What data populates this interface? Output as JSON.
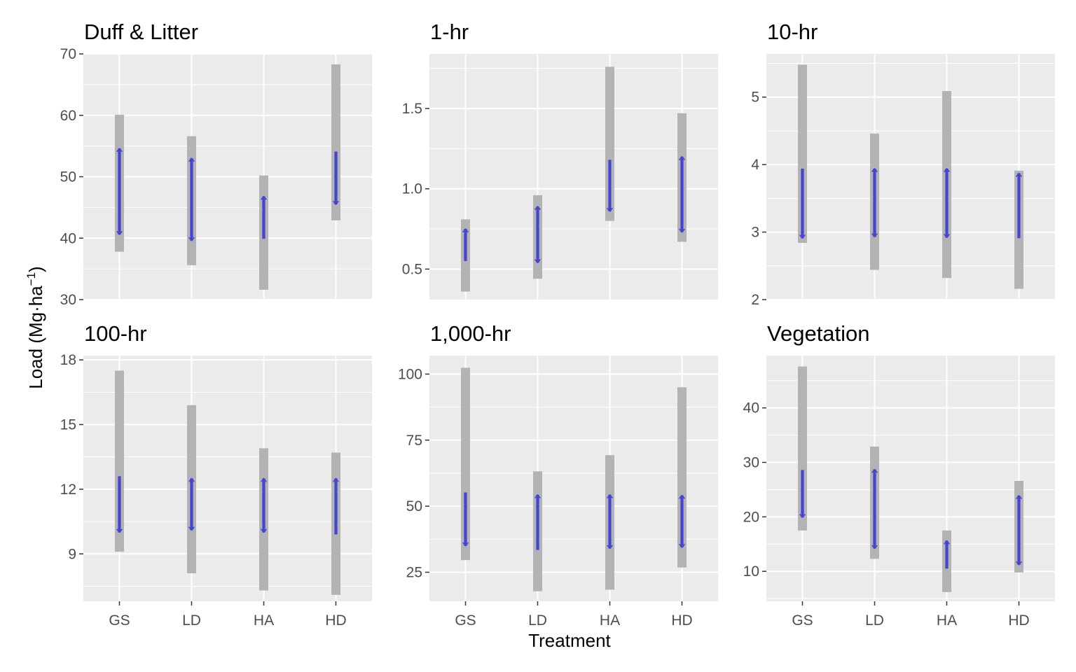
{
  "figure": {
    "x_axis_title": "Treatment",
    "y_axis_title": "Load (Mg·ha",
    "y_axis_title_superscript": "−1",
    "y_axis_title_suffix": ")",
    "panel_background": "#ebebeb",
    "gridline_color": "#ffffff",
    "range_bar_color": "#b3b3b3",
    "arrow_color": "#4444d4",
    "tick_color": "#333333"
  },
  "chart_data": [
    {
      "type": "range-arrow",
      "title": "Duff & Litter",
      "categories": [
        "GS",
        "LD",
        "HA",
        "HD"
      ],
      "ylim": [
        30,
        70
      ],
      "y_ticks": [
        30,
        40,
        50,
        60,
        70
      ],
      "y_tick_labels": [
        "30",
        "40",
        "50",
        "60",
        "70"
      ],
      "ranges": [
        [
          37.8,
          60.1
        ],
        [
          35.6,
          56.6
        ],
        [
          31.6,
          50.2
        ],
        [
          42.9,
          68.3
        ]
      ],
      "arrows": [
        {
          "from": 40.6,
          "to": 54.6,
          "direction": "both"
        },
        {
          "from": 39.6,
          "to": 53.0,
          "direction": "both"
        },
        {
          "from": 39.9,
          "to": 46.8,
          "direction": "up"
        },
        {
          "from": 54.1,
          "to": 45.5,
          "direction": "down"
        }
      ]
    },
    {
      "type": "range-arrow",
      "title": "1-hr",
      "categories": [
        "GS",
        "LD",
        "HA",
        "HD"
      ],
      "ylim": [
        0.31,
        1.84
      ],
      "y_ticks": [
        0.5,
        1.0,
        1.5
      ],
      "y_tick_labels": [
        "0.5",
        "1.0",
        "1.5"
      ],
      "ranges": [
        [
          0.36,
          0.81
        ],
        [
          0.44,
          0.96
        ],
        [
          0.8,
          1.76
        ],
        [
          0.67,
          1.47
        ]
      ],
      "arrows": [
        {
          "from": 0.55,
          "to": 0.75,
          "direction": "up"
        },
        {
          "from": 0.54,
          "to": 0.89,
          "direction": "both"
        },
        {
          "from": 1.18,
          "to": 0.86,
          "direction": "down"
        },
        {
          "from": 0.73,
          "to": 1.2,
          "direction": "both"
        }
      ]
    },
    {
      "type": "range-arrow",
      "title": "10-hr",
      "categories": [
        "GS",
        "LD",
        "HA",
        "HD"
      ],
      "ylim": [
        2.0,
        5.64
      ],
      "y_ticks": [
        2,
        3,
        4,
        5
      ],
      "y_tick_labels": [
        "2",
        "3",
        "4",
        "5"
      ],
      "ranges": [
        [
          2.84,
          5.48
        ],
        [
          2.44,
          4.46
        ],
        [
          2.32,
          5.09
        ],
        [
          2.16,
          3.91
        ]
      ],
      "arrows": [
        {
          "from": 3.94,
          "to": 2.91,
          "direction": "down"
        },
        {
          "from": 2.93,
          "to": 3.94,
          "direction": "both"
        },
        {
          "from": 2.92,
          "to": 3.94,
          "direction": "both"
        },
        {
          "from": 2.91,
          "to": 3.87,
          "direction": "up"
        }
      ]
    },
    {
      "type": "range-arrow",
      "title": "100-hr",
      "categories": [
        "GS",
        "LD",
        "HA",
        "HD"
      ],
      "ylim": [
        6.8,
        18.2
      ],
      "y_ticks": [
        9,
        12,
        15,
        18
      ],
      "y_tick_labels": [
        "9",
        "12",
        "15",
        "18"
      ],
      "ranges": [
        [
          9.1,
          17.5
        ],
        [
          8.1,
          15.9
        ],
        [
          7.3,
          13.9
        ],
        [
          7.1,
          13.7
        ]
      ],
      "arrows": [
        {
          "from": 12.6,
          "to": 10.0,
          "direction": "down"
        },
        {
          "from": 10.1,
          "to": 12.5,
          "direction": "both"
        },
        {
          "from": 10.0,
          "to": 12.5,
          "direction": "both"
        },
        {
          "from": 9.9,
          "to": 12.5,
          "direction": "up"
        }
      ]
    },
    {
      "type": "range-arrow",
      "title": "1,000-hr",
      "categories": [
        "GS",
        "LD",
        "HA",
        "HD"
      ],
      "ylim": [
        14,
        107
      ],
      "y_ticks": [
        25,
        50,
        75,
        100
      ],
      "y_tick_labels": [
        "25",
        "50",
        "75",
        "100"
      ],
      "ranges": [
        [
          29.6,
          102.4
        ],
        [
          17.8,
          63.2
        ],
        [
          18.4,
          69.3
        ],
        [
          26.8,
          95.0
        ]
      ],
      "arrows": [
        {
          "from": 55.2,
          "to": 35.0,
          "direction": "down"
        },
        {
          "from": 33.4,
          "to": 54.3,
          "direction": "up"
        },
        {
          "from": 34.0,
          "to": 54.3,
          "direction": "both"
        },
        {
          "from": 34.4,
          "to": 54.1,
          "direction": "both"
        }
      ]
    },
    {
      "type": "range-arrow",
      "title": "Vegetation",
      "categories": [
        "GS",
        "LD",
        "HA",
        "HD"
      ],
      "ylim": [
        4.5,
        49.6
      ],
      "y_ticks": [
        10,
        20,
        30,
        40
      ],
      "y_tick_labels": [
        "10",
        "20",
        "30",
        "40"
      ],
      "ranges": [
        [
          17.5,
          47.6
        ],
        [
          12.3,
          32.9
        ],
        [
          6.2,
          17.5
        ],
        [
          9.8,
          26.6
        ]
      ],
      "arrows": [
        {
          "from": 28.6,
          "to": 19.9,
          "direction": "down"
        },
        {
          "from": 14.2,
          "to": 28.7,
          "direction": "both"
        },
        {
          "from": 10.5,
          "to": 15.6,
          "direction": "up"
        },
        {
          "from": 11.2,
          "to": 23.9,
          "direction": "both"
        }
      ]
    }
  ]
}
